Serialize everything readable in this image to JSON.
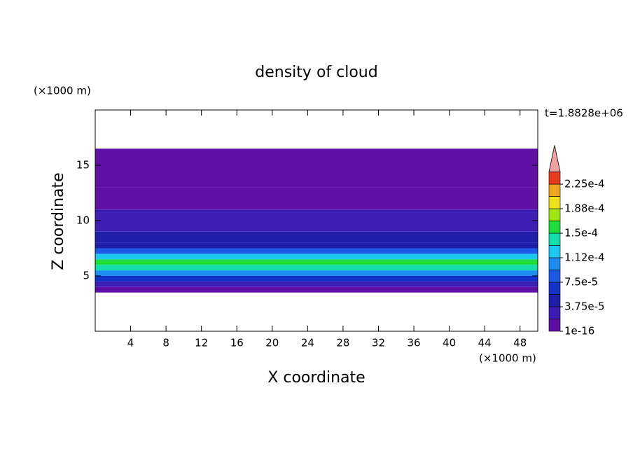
{
  "chart_data": {
    "type": "contour",
    "title": "density of cloud",
    "x_label": "X coordinate",
    "y_label": "Z coordinate",
    "x_unit": "(×1000 m)",
    "y_unit": "(×1000 m)",
    "time_label": "t=1.8828e+06",
    "xlim": [
      0,
      50
    ],
    "ylim": [
      0,
      20
    ],
    "xticks": [
      4,
      8,
      12,
      16,
      20,
      24,
      28,
      32,
      36,
      40,
      44,
      48
    ],
    "yticks": [
      5,
      10,
      15
    ],
    "z": [
      3.5,
      4,
      4.5,
      5,
      5.5,
      6,
      6.5,
      7,
      7.5,
      8,
      9,
      10,
      11,
      13,
      16.5
    ],
    "values": [
      1e-05,
      3e-05,
      6e-05,
      0.0001,
      0.00014,
      0.00016,
      0.00013,
      8e-05,
      5e-05,
      4e-05,
      2.5e-05,
      2e-05,
      1e-05,
      5e-06
    ],
    "colorbar": {
      "levels": [
        1e-16,
        1.875e-05,
        3.75e-05,
        5.625e-05,
        7.5e-05,
        9.375e-05,
        0.0001125,
        0.00013125,
        0.00015,
        0.00016875,
        0.0001875,
        0.00020625,
        0.000225,
        0.00024375
      ],
      "colors": [
        "#5f0fa5",
        "#3c1eb4",
        "#1e1eaa",
        "#1432c8",
        "#1e5ae6",
        "#1e8cf0",
        "#1ec8f0",
        "#14dcaa",
        "#1edc3c",
        "#a0e614",
        "#f0e11e",
        "#f0a51e",
        "#e63c1e"
      ],
      "extend_color": "#f0a0a0",
      "ticks": [
        1e-16,
        {
          "value": 3.75e-05,
          "label": "3.75e-5"
        },
        {
          "value": 7.5e-05,
          "label": "7.5e-5"
        },
        {
          "value": 0.0001125,
          "label": "1.12e-4"
        },
        {
          "value": 0.00015,
          "label": "1.5e-4"
        },
        {
          "value": 0.0001875,
          "label": "1.88e-4"
        },
        {
          "value": 0.000225,
          "label": "2.25e-4"
        }
      ]
    }
  }
}
